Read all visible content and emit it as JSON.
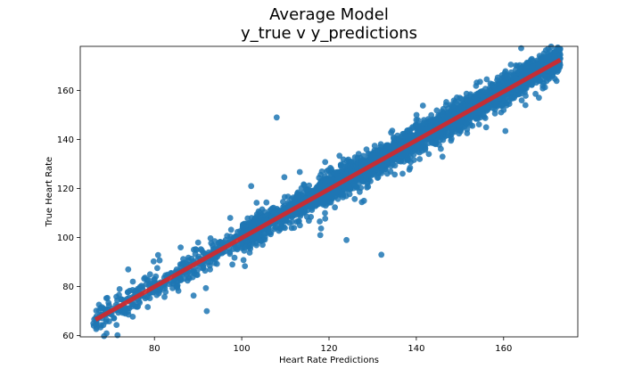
{
  "chart_data": {
    "type": "scatter",
    "title_line1": "Average Model",
    "title_line2": "y_true v y_predictions",
    "xlabel": "Heart Rate Predictions",
    "ylabel": "True Heart Rate",
    "xlim": [
      63,
      177
    ],
    "ylim": [
      59.5,
      178
    ],
    "xticks": [
      80,
      100,
      120,
      140,
      160
    ],
    "yticks": [
      60,
      80,
      100,
      120,
      140,
      160
    ],
    "grid": false,
    "point_color": "#1f77b4",
    "fit_line_color": "#d62728",
    "fit_line": {
      "x": [
        66.5,
        173
      ],
      "y": [
        66.5,
        172.5
      ]
    },
    "points": {
      "count": 4000,
      "x_range": [
        66,
        173
      ],
      "relation": "y approximately equal to x with scatter",
      "sample": [
        [
          66,
          65
        ],
        [
          70,
          70
        ],
        [
          72,
          79
        ],
        [
          74,
          87
        ],
        [
          79,
          85
        ],
        [
          86,
          96
        ],
        [
          90,
          98
        ],
        [
          92,
          70
        ],
        [
          100,
          102
        ],
        [
          104,
          104
        ],
        [
          108,
          149
        ],
        [
          112,
          104
        ],
        [
          113,
          117
        ],
        [
          118,
          101
        ],
        [
          124,
          99
        ],
        [
          125,
          131
        ],
        [
          128,
          115
        ],
        [
          132,
          93
        ],
        [
          140,
          148
        ],
        [
          146,
          133
        ],
        [
          150,
          157
        ],
        [
          156,
          145
        ],
        [
          160,
          152
        ],
        [
          164,
          165
        ],
        [
          165,
          154
        ],
        [
          170,
          171
        ],
        [
          173,
          173
        ]
      ]
    }
  }
}
